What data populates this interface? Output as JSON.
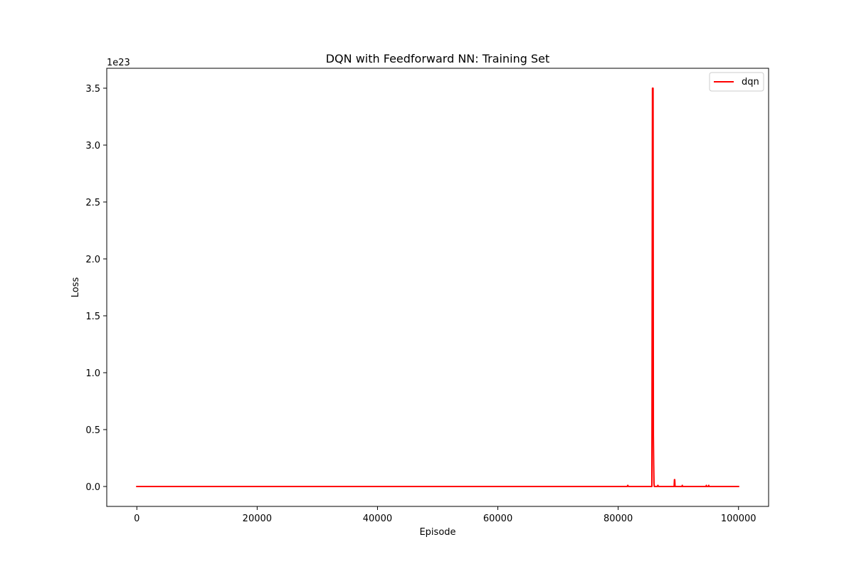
{
  "chart_data": {
    "type": "line",
    "title": "DQN with Feedforward NN: Training Set",
    "xlabel": "Episode",
    "ylabel": "Loss",
    "y_offset_label": "1e23",
    "xlim": [
      -5000,
      105000
    ],
    "ylim": [
      -0.175,
      3.675
    ],
    "x_ticks": [
      0,
      20000,
      40000,
      60000,
      80000,
      100000
    ],
    "x_tick_labels": [
      "0",
      "20000",
      "40000",
      "60000",
      "80000",
      "100000"
    ],
    "y_ticks": [
      0.0,
      0.5,
      1.0,
      1.5,
      2.0,
      2.5,
      3.0,
      3.5
    ],
    "y_tick_labels": [
      "0.0",
      "0.5",
      "1.0",
      "1.5",
      "2.0",
      "2.5",
      "3.0",
      "3.5"
    ],
    "grid": false,
    "legend": {
      "placement": "top-right",
      "entries": [
        "dqn"
      ]
    },
    "series": [
      {
        "name": "dqn",
        "color": "#ff0000",
        "x": [
          0,
          81500,
          81600,
          81700,
          85600,
          85700,
          85750,
          85800,
          85850,
          85900,
          85950,
          86000,
          86500,
          86600,
          86700,
          89300,
          89350,
          89400,
          89450,
          90600,
          90650,
          90700,
          94600,
          94650,
          94700,
          95000,
          95050,
          95100,
          100000
        ],
        "y": [
          0,
          0,
          0.01,
          0,
          0,
          3.5,
          1.6,
          3.5,
          0.45,
          0.2,
          0.03,
          0,
          0,
          0.01,
          0,
          0,
          0.06,
          0.06,
          0,
          0,
          0.01,
          0,
          0,
          0.01,
          0,
          0,
          0.01,
          0,
          0
        ]
      }
    ]
  }
}
